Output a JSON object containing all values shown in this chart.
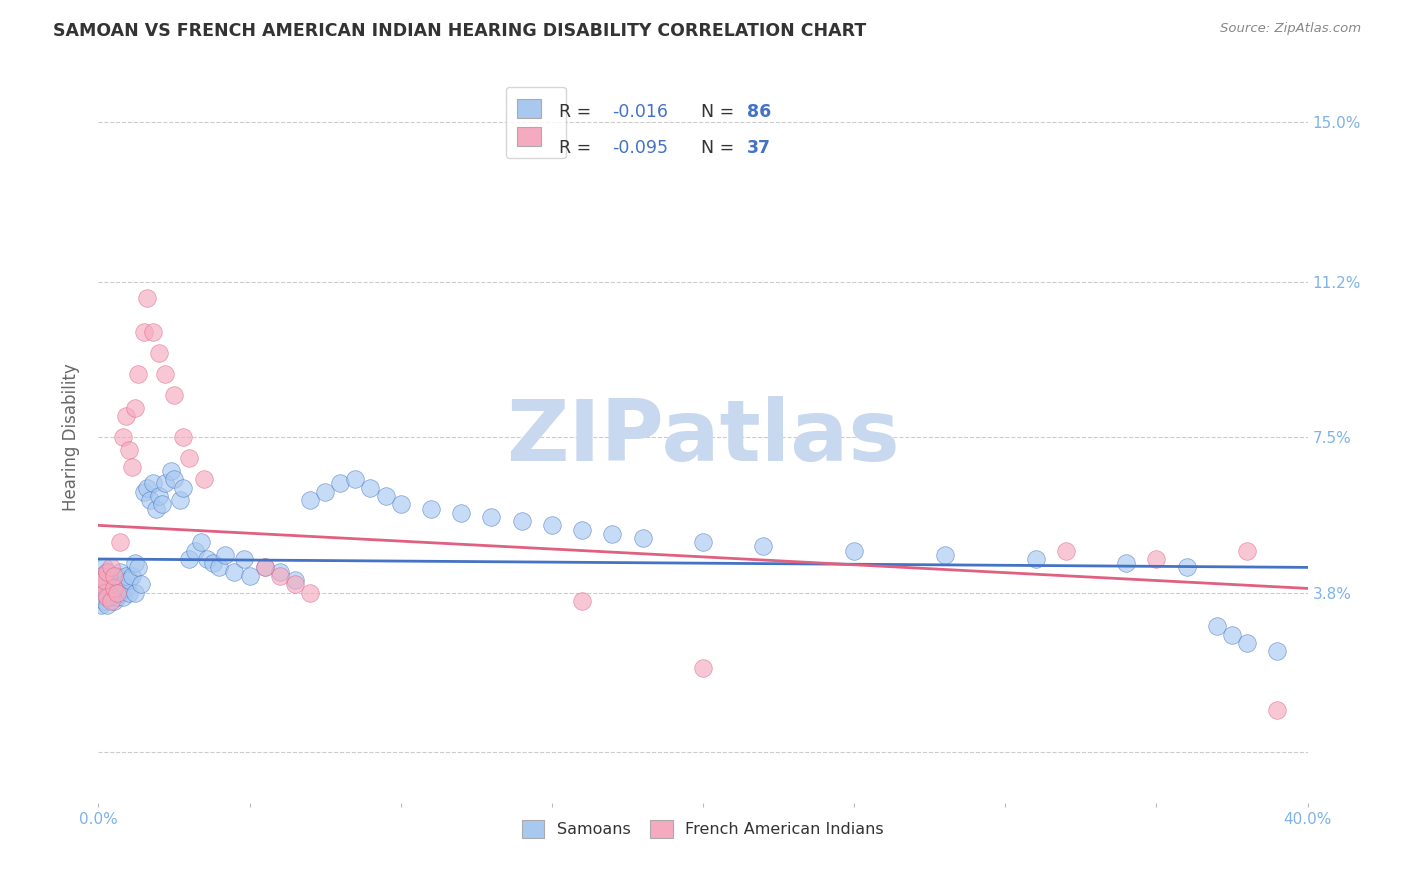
{
  "title": "SAMOAN VS FRENCH AMERICAN INDIAN HEARING DISABILITY CORRELATION CHART",
  "source": "Source: ZipAtlas.com",
  "ylabel": "Hearing Disability",
  "yticks": [
    0.0,
    0.038,
    0.075,
    0.112,
    0.15
  ],
  "ytick_labels": [
    "",
    "3.8%",
    "7.5%",
    "11.2%",
    "15.0%"
  ],
  "xlim": [
    0.0,
    0.4
  ],
  "ylim": [
    -0.012,
    0.162
  ],
  "legend_r1_prefix": "R = ",
  "legend_r1_val": "-0.016",
  "legend_n1_prefix": "N = ",
  "legend_n1_val": "86",
  "legend_r2_prefix": "R = ",
  "legend_r2_val": "-0.095",
  "legend_n2_prefix": "N = ",
  "legend_n2_val": "37",
  "color_samoan": "#A8C8F0",
  "color_french": "#F5AABF",
  "color_line_samoan": "#4472C4",
  "color_line_french": "#E06080",
  "color_text_r": "#4472C4",
  "color_text_n": "#4472C4",
  "color_text_black": "#333333",
  "watermark": "ZIPatlas",
  "watermark_color": "#C8D8EE",
  "background_color": "#FFFFFF",
  "grid_color": "#CCCCCC",
  "tick_color": "#7EB3E8",
  "axis_label_color": "#666666",
  "xtick_positions": [
    0.0,
    0.05,
    0.1,
    0.15,
    0.2,
    0.25,
    0.3,
    0.35,
    0.4
  ],
  "xtick_labels": [
    "0.0%",
    "",
    "",
    "",
    "",
    "",
    "",
    "",
    "40.0%"
  ],
  "line_samoan_start": 0.046,
  "line_samoan_end": 0.044,
  "line_french_start": 0.054,
  "line_french_end": 0.039,
  "samoan_x": [
    0.001,
    0.001,
    0.001,
    0.001,
    0.002,
    0.002,
    0.002,
    0.002,
    0.003,
    0.003,
    0.003,
    0.003,
    0.004,
    0.004,
    0.004,
    0.005,
    0.005,
    0.005,
    0.006,
    0.006,
    0.006,
    0.007,
    0.007,
    0.007,
    0.008,
    0.008,
    0.009,
    0.009,
    0.01,
    0.01,
    0.011,
    0.012,
    0.012,
    0.013,
    0.014,
    0.015,
    0.016,
    0.017,
    0.018,
    0.019,
    0.02,
    0.021,
    0.022,
    0.024,
    0.025,
    0.027,
    0.028,
    0.03,
    0.032,
    0.034,
    0.036,
    0.038,
    0.04,
    0.042,
    0.045,
    0.048,
    0.05,
    0.055,
    0.06,
    0.065,
    0.07,
    0.075,
    0.08,
    0.085,
    0.09,
    0.095,
    0.1,
    0.11,
    0.12,
    0.13,
    0.14,
    0.15,
    0.16,
    0.17,
    0.18,
    0.2,
    0.22,
    0.25,
    0.28,
    0.31,
    0.34,
    0.36,
    0.37,
    0.375,
    0.38,
    0.39
  ],
  "samoan_y": [
    0.038,
    0.04,
    0.035,
    0.042,
    0.037,
    0.041,
    0.036,
    0.044,
    0.038,
    0.04,
    0.035,
    0.043,
    0.037,
    0.039,
    0.042,
    0.038,
    0.04,
    0.036,
    0.039,
    0.042,
    0.037,
    0.041,
    0.038,
    0.043,
    0.037,
    0.04,
    0.039,
    0.042,
    0.038,
    0.041,
    0.042,
    0.038,
    0.045,
    0.044,
    0.04,
    0.062,
    0.063,
    0.06,
    0.064,
    0.058,
    0.061,
    0.059,
    0.064,
    0.067,
    0.065,
    0.06,
    0.063,
    0.046,
    0.048,
    0.05,
    0.046,
    0.045,
    0.044,
    0.047,
    0.043,
    0.046,
    0.042,
    0.044,
    0.043,
    0.041,
    0.06,
    0.062,
    0.064,
    0.065,
    0.063,
    0.061,
    0.059,
    0.058,
    0.057,
    0.056,
    0.055,
    0.054,
    0.053,
    0.052,
    0.051,
    0.05,
    0.049,
    0.048,
    0.047,
    0.046,
    0.045,
    0.044,
    0.03,
    0.028,
    0.026,
    0.024
  ],
  "french_x": [
    0.001,
    0.001,
    0.002,
    0.002,
    0.003,
    0.003,
    0.004,
    0.004,
    0.005,
    0.005,
    0.006,
    0.007,
    0.008,
    0.009,
    0.01,
    0.011,
    0.012,
    0.013,
    0.015,
    0.016,
    0.018,
    0.02,
    0.022,
    0.025,
    0.028,
    0.03,
    0.035,
    0.055,
    0.06,
    0.065,
    0.07,
    0.16,
    0.2,
    0.32,
    0.35,
    0.38,
    0.39
  ],
  "french_y": [
    0.04,
    0.042,
    0.038,
    0.041,
    0.037,
    0.043,
    0.036,
    0.044,
    0.039,
    0.042,
    0.038,
    0.05,
    0.075,
    0.08,
    0.072,
    0.068,
    0.082,
    0.09,
    0.1,
    0.108,
    0.1,
    0.095,
    0.09,
    0.085,
    0.075,
    0.07,
    0.065,
    0.044,
    0.042,
    0.04,
    0.038,
    0.036,
    0.02,
    0.048,
    0.046,
    0.048,
    0.01
  ]
}
